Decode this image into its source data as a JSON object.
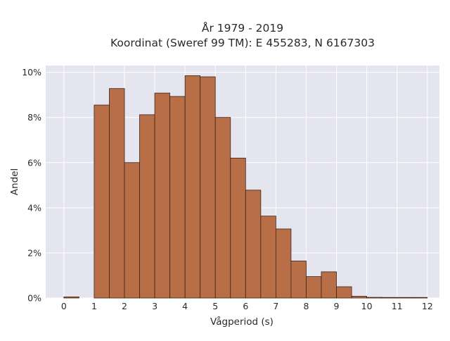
{
  "title_line1": "År 1979 - 2019",
  "title_line2": "Koordinat (Sweref 99 TM): E 455283, N 6167303",
  "chart_data": {
    "type": "bar",
    "title": "År 1979 - 2019\nKoordinat (Sweref 99 TM): E 455283, N 6167303",
    "xlabel": "Vågperiod (s)",
    "ylabel": "Andel",
    "xlim": [
      -0.6,
      12.4
    ],
    "ylim": [
      0,
      10.3
    ],
    "xticks": [
      0,
      1,
      2,
      3,
      4,
      5,
      6,
      7,
      8,
      9,
      10,
      11,
      12
    ],
    "yticks": [
      0,
      2,
      4,
      6,
      8,
      10
    ],
    "ytick_labels": [
      "0%",
      "2%",
      "4%",
      "6%",
      "8%",
      "10%"
    ],
    "bin_width": 0.5,
    "bins": [
      {
        "x0": 0.0,
        "value": 0.05
      },
      {
        "x0": 1.0,
        "value": 8.55
      },
      {
        "x0": 1.5,
        "value": 9.28
      },
      {
        "x0": 2.0,
        "value": 6.0
      },
      {
        "x0": 2.5,
        "value": 8.12
      },
      {
        "x0": 3.0,
        "value": 9.08
      },
      {
        "x0": 3.5,
        "value": 8.93
      },
      {
        "x0": 4.0,
        "value": 9.85
      },
      {
        "x0": 4.5,
        "value": 9.8
      },
      {
        "x0": 5.0,
        "value": 8.0
      },
      {
        "x0": 5.5,
        "value": 6.2
      },
      {
        "x0": 6.0,
        "value": 4.78
      },
      {
        "x0": 6.5,
        "value": 3.63
      },
      {
        "x0": 7.0,
        "value": 3.06
      },
      {
        "x0": 7.5,
        "value": 1.64
      },
      {
        "x0": 8.0,
        "value": 0.95
      },
      {
        "x0": 8.5,
        "value": 1.16
      },
      {
        "x0": 9.0,
        "value": 0.5
      },
      {
        "x0": 9.5,
        "value": 0.08
      },
      {
        "x0": 10.0,
        "value": 0.03
      },
      {
        "x0": 10.5,
        "value": 0.01
      },
      {
        "x0": 11.0,
        "value": 0.01
      },
      {
        "x0": 11.5,
        "value": 0.01
      }
    ],
    "grid": true,
    "colors": {
      "bar_fill": "#b86f47",
      "bar_edge": "#3a2418",
      "plot_background": "#e5e5ef",
      "grid": "#ffffff"
    }
  }
}
